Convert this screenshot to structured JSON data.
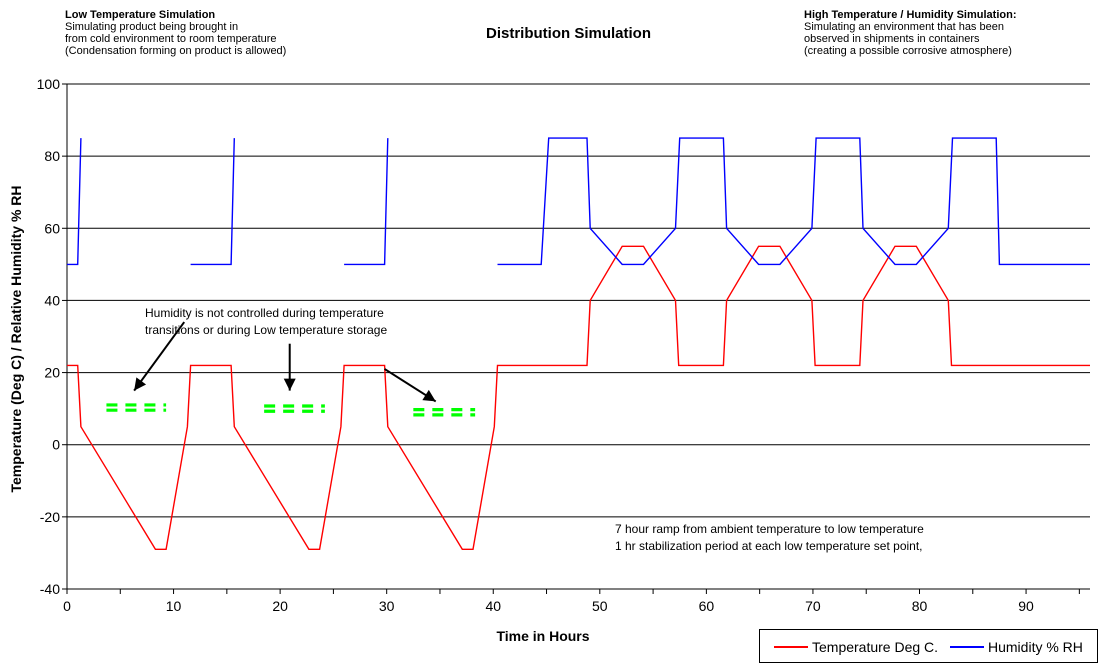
{
  "chart_data": {
    "type": "line",
    "title": "Distribution Simulation",
    "xlabel": "Time in Hours",
    "ylabel": "Temperature (Deg C) / Relative Humidity % RH",
    "xlim": [
      0,
      96
    ],
    "ylim": [
      -40,
      100
    ],
    "x_ticks": [
      0,
      10,
      20,
      30,
      40,
      50,
      60,
      70,
      80,
      90
    ],
    "y_ticks": [
      -40,
      -20,
      0,
      20,
      40,
      60,
      80,
      100
    ],
    "grid": "horizontal",
    "legend_position": "bottom-right",
    "series": [
      {
        "name": "Temperature Deg C.",
        "color": "#ff0000",
        "points": [
          [
            0,
            22
          ],
          [
            1,
            22
          ],
          [
            1.3,
            5
          ],
          [
            8.3,
            -29
          ],
          [
            9.3,
            -29
          ],
          [
            11.3,
            5
          ],
          [
            11.6,
            22
          ],
          [
            15.4,
            22
          ],
          [
            15.7,
            5
          ],
          [
            22.7,
            -29
          ],
          [
            23.7,
            -29
          ],
          [
            25.7,
            5
          ],
          [
            26,
            22
          ],
          [
            29.8,
            22
          ],
          [
            30.1,
            5
          ],
          [
            37.1,
            -29
          ],
          [
            38.1,
            -29
          ],
          [
            40.1,
            5
          ],
          [
            40.4,
            22
          ],
          [
            48.8,
            22
          ],
          [
            49.1,
            40
          ],
          [
            52.1,
            55
          ],
          [
            54.1,
            55
          ],
          [
            57.1,
            40
          ],
          [
            57.4,
            22
          ],
          [
            61.6,
            22
          ],
          [
            61.9,
            40
          ],
          [
            64.9,
            55
          ],
          [
            66.9,
            55
          ],
          [
            69.9,
            40
          ],
          [
            70.2,
            22
          ],
          [
            74.4,
            22
          ],
          [
            74.7,
            40
          ],
          [
            77.7,
            55
          ],
          [
            79.7,
            55
          ],
          [
            82.7,
            40
          ],
          [
            83,
            22
          ],
          [
            96,
            22
          ]
        ]
      },
      {
        "name": "Humidity % RH",
        "color": "#0000ff",
        "segments": [
          [
            [
              0,
              50
            ],
            [
              1,
              50
            ],
            [
              1.3,
              85
            ]
          ],
          [
            [
              11.6,
              50
            ],
            [
              15.4,
              50
            ],
            [
              15.7,
              85
            ]
          ],
          [
            [
              26,
              50
            ],
            [
              29.8,
              50
            ],
            [
              30.1,
              85
            ]
          ],
          [
            [
              40.4,
              50
            ],
            [
              44.5,
              50
            ],
            [
              45.2,
              85
            ],
            [
              48.8,
              85
            ],
            [
              49.1,
              60
            ],
            [
              52.1,
              50
            ],
            [
              54.1,
              50
            ],
            [
              57.1,
              60
            ],
            [
              57.5,
              85
            ],
            [
              61.6,
              85
            ],
            [
              61.9,
              60
            ],
            [
              64.9,
              50
            ],
            [
              66.9,
              50
            ],
            [
              69.9,
              60
            ],
            [
              70.3,
              85
            ],
            [
              74.4,
              85
            ],
            [
              74.7,
              60
            ],
            [
              77.7,
              50
            ],
            [
              79.7,
              50
            ],
            [
              82.7,
              60
            ],
            [
              83.1,
              85
            ],
            [
              87.2,
              85
            ],
            [
              87.5,
              50
            ],
            [
              96,
              50
            ]
          ]
        ]
      }
    ],
    "annotations": {
      "humidity_note": [
        "Humidity is not controlled during temperature",
        "transitions or during Low temperature storage"
      ],
      "ramp_note": [
        "7 hour ramp from ambient temperature  to low temperature",
        "1 hr stabilization period at each low temperature set point,"
      ]
    },
    "uncontrolled_humidity_markers": [
      {
        "x_start": 3.7,
        "x_end": 9.3,
        "y": 10.3
      },
      {
        "x_start": 18.5,
        "x_end": 24.2,
        "y": 10.0
      },
      {
        "x_start": 32.5,
        "x_end": 38.3,
        "y": 9.0
      }
    ],
    "arrows": [
      {
        "from": [
          11.0,
          34
        ],
        "to": [
          6.3,
          15
        ]
      },
      {
        "from": [
          20.9,
          28
        ],
        "to": [
          20.9,
          15
        ]
      },
      {
        "from": [
          29.8,
          21
        ],
        "to": [
          34.6,
          12
        ]
      }
    ]
  },
  "notes": {
    "left": {
      "title": "Low Temperature Simulation",
      "lines": [
        "Simulating product being brought in",
        "from cold environment to room temperature",
        "(Condensation forming on product is allowed)"
      ]
    },
    "right": {
      "title": "High Temperature / Humidity Simulation:",
      "lines": [
        "Simulating an environment that has been",
        "observed in shipments in containers",
        "(creating a possible corrosive atmosphere)"
      ]
    }
  },
  "legend": {
    "temperature": {
      "label": "Temperature Deg C.",
      "color": "#ff0000"
    },
    "humidity": {
      "label": "Humidity % RH",
      "color": "#0000ff"
    }
  },
  "colors": {
    "temperature": "#ff0000",
    "humidity": "#0000ff",
    "marker": "#00ff00",
    "grid": "#000000"
  }
}
